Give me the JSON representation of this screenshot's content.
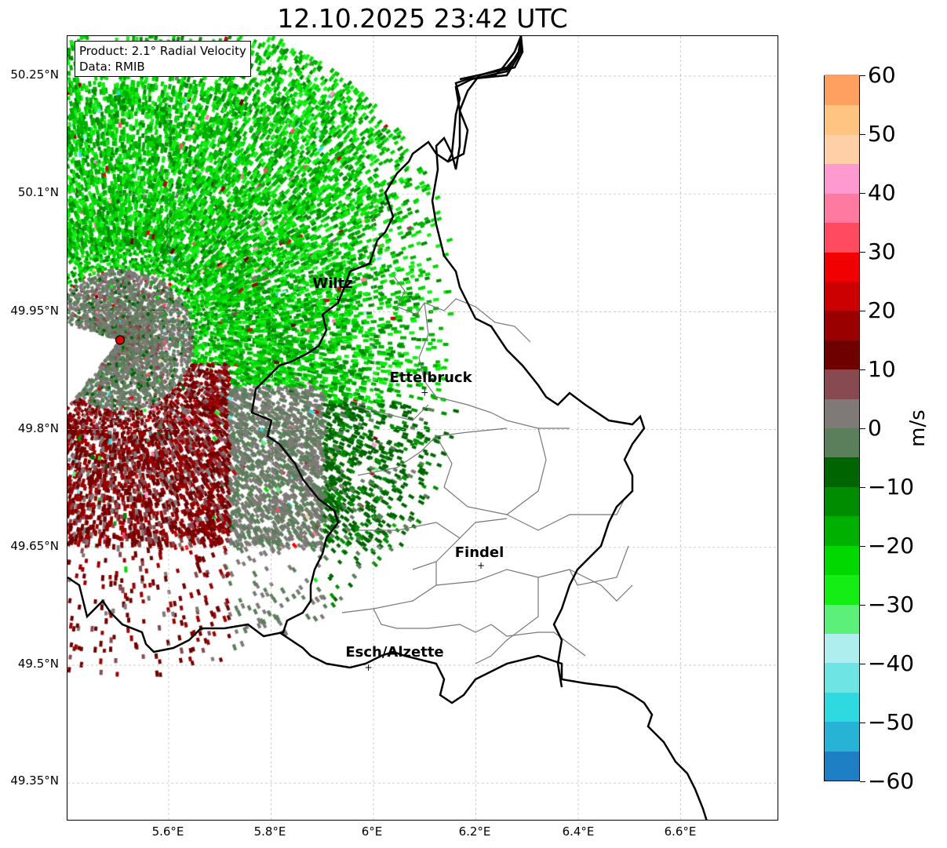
{
  "title": "12.10.2025 23:42 UTC",
  "info": {
    "product": "Product: 2.1° Radial Velocity",
    "data": "Data: RMIB"
  },
  "axes": {
    "x_ticks": [
      "5.6°E",
      "5.8°E",
      "6°E",
      "6.2°E",
      "6.4°E",
      "6.6°E"
    ],
    "x_values": [
      5.6,
      5.8,
      6.0,
      6.2,
      6.4,
      6.6
    ],
    "y_ticks": [
      "50.25°N",
      "50.1°N",
      "49.95°N",
      "49.8°N",
      "49.65°N",
      "49.5°N",
      "49.35°N"
    ],
    "y_values": [
      50.25,
      50.1,
      49.95,
      49.8,
      49.65,
      49.5,
      49.35
    ],
    "lon_range": [
      5.4,
      6.79
    ],
    "lat_range": [
      49.3,
      50.3
    ]
  },
  "cities": [
    {
      "name": "Wiltz",
      "lon": 5.93,
      "lat": 49.966
    },
    {
      "name": "Ettelbruck",
      "lon": 6.1,
      "lat": 49.847
    },
    {
      "name": "Findel",
      "lon": 6.21,
      "lat": 49.627
    },
    {
      "name": "Esch/Alzette",
      "lon": 5.99,
      "lat": 49.497
    }
  ],
  "radar_site": {
    "lon": 5.505,
    "lat": 49.914,
    "color": "#e00000"
  },
  "colorbar": {
    "unit": "m/s",
    "range": [
      -60,
      60
    ],
    "tick_labels": [
      "60",
      "50",
      "40",
      "30",
      "20",
      "10",
      "0",
      "−10",
      "−20",
      "−30",
      "−40",
      "−50",
      "−60"
    ],
    "tick_values": [
      60,
      50,
      40,
      30,
      20,
      10,
      0,
      -10,
      -20,
      -30,
      -40,
      -50,
      -60
    ],
    "band_width": 5,
    "colors": [
      "#1f7fc4",
      "#27b3d6",
      "#2fd9e0",
      "#6ee5e5",
      "#aeeeef",
      "#5cf07a",
      "#14ee14",
      "#00d800",
      "#00b000",
      "#008c00",
      "#006400",
      "#5a7f5a",
      "#7f7a78",
      "#864a50",
      "#6e0000",
      "#9a0000",
      "#cc0000",
      "#f00000",
      "#ff4a60",
      "#ff7aa0",
      "#ff9ad0",
      "#ffd0a8",
      "#ffc480",
      "#ffa060"
    ]
  }
}
